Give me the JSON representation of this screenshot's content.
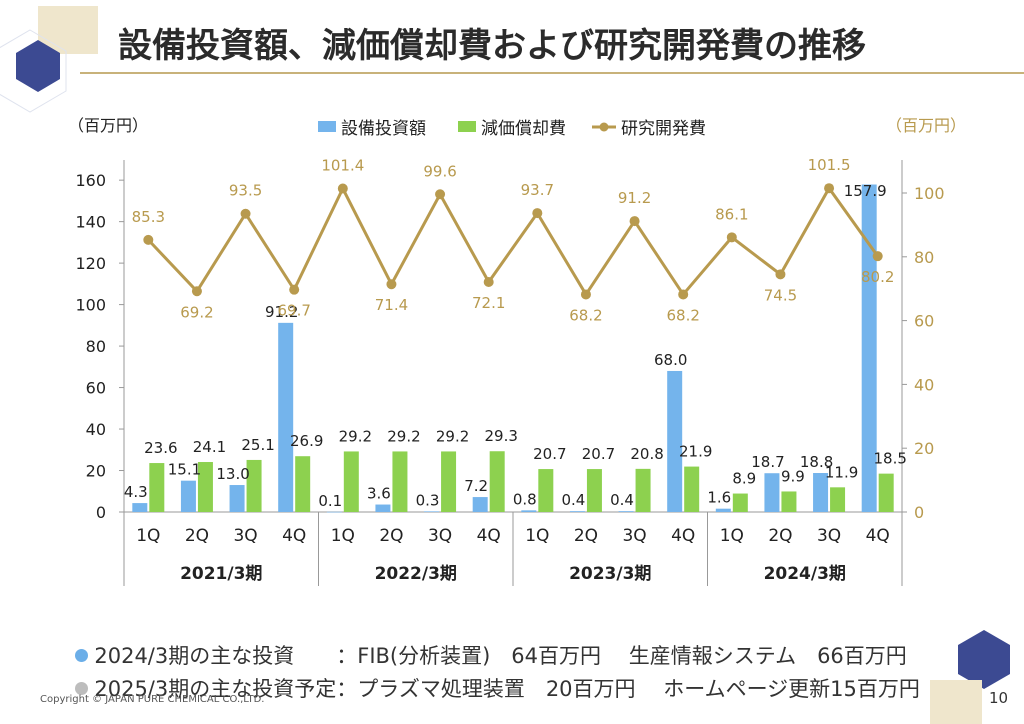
{
  "page": {
    "title": "設備投資額、減価償却費および研究開発費の推移",
    "copyright": "Copyright © JAPAN PURE CHEMICAL CO.,LTD.",
    "page_number": "10",
    "notes": [
      {
        "text": "2024/3期の主な投資　　：FIB(分析装置)　64百万円　 生産情報システム　66百万円",
        "bullet_color": "#6baee8"
      },
      {
        "text": "2025/3期の主な投資予定：プラズマ処理装置　20百万円 　ホームページ更新15百万円",
        "bullet_color": "#bdbdbd"
      }
    ]
  },
  "chart_data": {
    "type": "bar",
    "left_unit": "（百万円）",
    "right_unit": "（百万円）",
    "left_ticks": [
      "0",
      "20",
      "40",
      "60",
      "80",
      "100",
      "120",
      "140",
      "160"
    ],
    "right_ticks": [
      "0",
      "20",
      "40",
      "60",
      "80",
      "100"
    ],
    "ylim_left": [
      0,
      165
    ],
    "ylim_right": [
      0,
      110
    ],
    "categories": [
      "1Q",
      "2Q",
      "3Q",
      "4Q",
      "1Q",
      "2Q",
      "3Q",
      "4Q",
      "1Q",
      "2Q",
      "3Q",
      "4Q",
      "1Q",
      "2Q",
      "3Q",
      "4Q"
    ],
    "groups": [
      "2021/3期",
      "2022/3期",
      "2023/3期",
      "2024/3期"
    ],
    "series": [
      {
        "name": "設備投資額",
        "kind": "bar",
        "axis": "left",
        "color": "#74b4ec",
        "values": [
          4.3,
          15.1,
          13.0,
          91.2,
          0.1,
          3.6,
          0.3,
          7.2,
          0.8,
          0.4,
          0.4,
          68.0,
          1.6,
          18.7,
          18.8,
          157.9
        ],
        "labels": [
          "4.3",
          "15.1",
          "13.0",
          "91.2",
          "0.1",
          "3.6",
          "0.3",
          "7.2",
          "0.8",
          "0.4",
          "0.4",
          "68.0",
          "1.6",
          "18.7",
          "18.8",
          "157.9"
        ]
      },
      {
        "name": "減価償却費",
        "kind": "bar",
        "axis": "left",
        "color": "#8dd14f",
        "values": [
          23.6,
          24.1,
          25.1,
          26.9,
          29.2,
          29.2,
          29.2,
          29.3,
          20.7,
          20.7,
          20.8,
          21.9,
          8.9,
          9.9,
          11.9,
          18.5
        ],
        "labels": [
          "23.6",
          "24.1",
          "25.1",
          "26.9",
          "29.2",
          "29.2",
          "29.2",
          "29.3",
          "20.7",
          "20.7",
          "20.8",
          "21.9",
          "8.9",
          "9.9",
          "11.9",
          "18.5"
        ]
      },
      {
        "name": "研究開発費",
        "kind": "line",
        "axis": "right",
        "color": "#b89a4e",
        "values": [
          85.3,
          69.2,
          93.5,
          69.7,
          101.4,
          71.4,
          99.6,
          72.1,
          93.7,
          68.2,
          91.2,
          68.2,
          86.1,
          74.5,
          101.5,
          80.2
        ],
        "labels": [
          "85.3",
          "69.2",
          "93.5",
          "69.7",
          "101.4",
          "71.4",
          "99.6",
          "72.1",
          "93.7",
          "68.2",
          "91.2",
          "68.2",
          "86.1",
          "74.5",
          "101.5",
          "80.2"
        ]
      }
    ],
    "grid": false,
    "legend_position": "top"
  }
}
